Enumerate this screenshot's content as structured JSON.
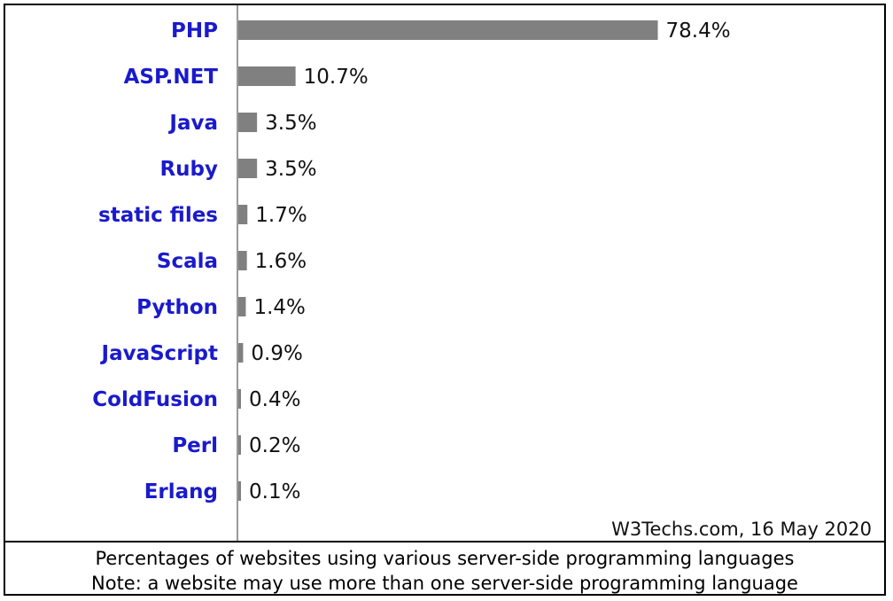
{
  "chart_data": {
    "type": "bar",
    "orientation": "horizontal",
    "categories": [
      "PHP",
      "ASP.NET",
      "Java",
      "Ruby",
      "static files",
      "Scala",
      "Python",
      "JavaScript",
      "ColdFusion",
      "Perl",
      "Erlang"
    ],
    "values": [
      78.4,
      10.7,
      3.5,
      3.5,
      1.7,
      1.6,
      1.4,
      0.9,
      0.4,
      0.2,
      0.1
    ],
    "value_labels": [
      "78.4%",
      "10.7%",
      "3.5%",
      "3.5%",
      "1.7%",
      "1.6%",
      "1.4%",
      "0.9%",
      "0.4%",
      "0.2%",
      "0.1%"
    ],
    "xlim": [
      0,
      100
    ],
    "grid": false,
    "bar_color": "#808080",
    "category_color": "#1a1acc",
    "source": "W3Techs.com, 16 May 2020"
  },
  "caption": {
    "line1": "Percentages of websites using various server-side programming languages",
    "line2": "Note: a website may use more than one server-side programming language"
  }
}
